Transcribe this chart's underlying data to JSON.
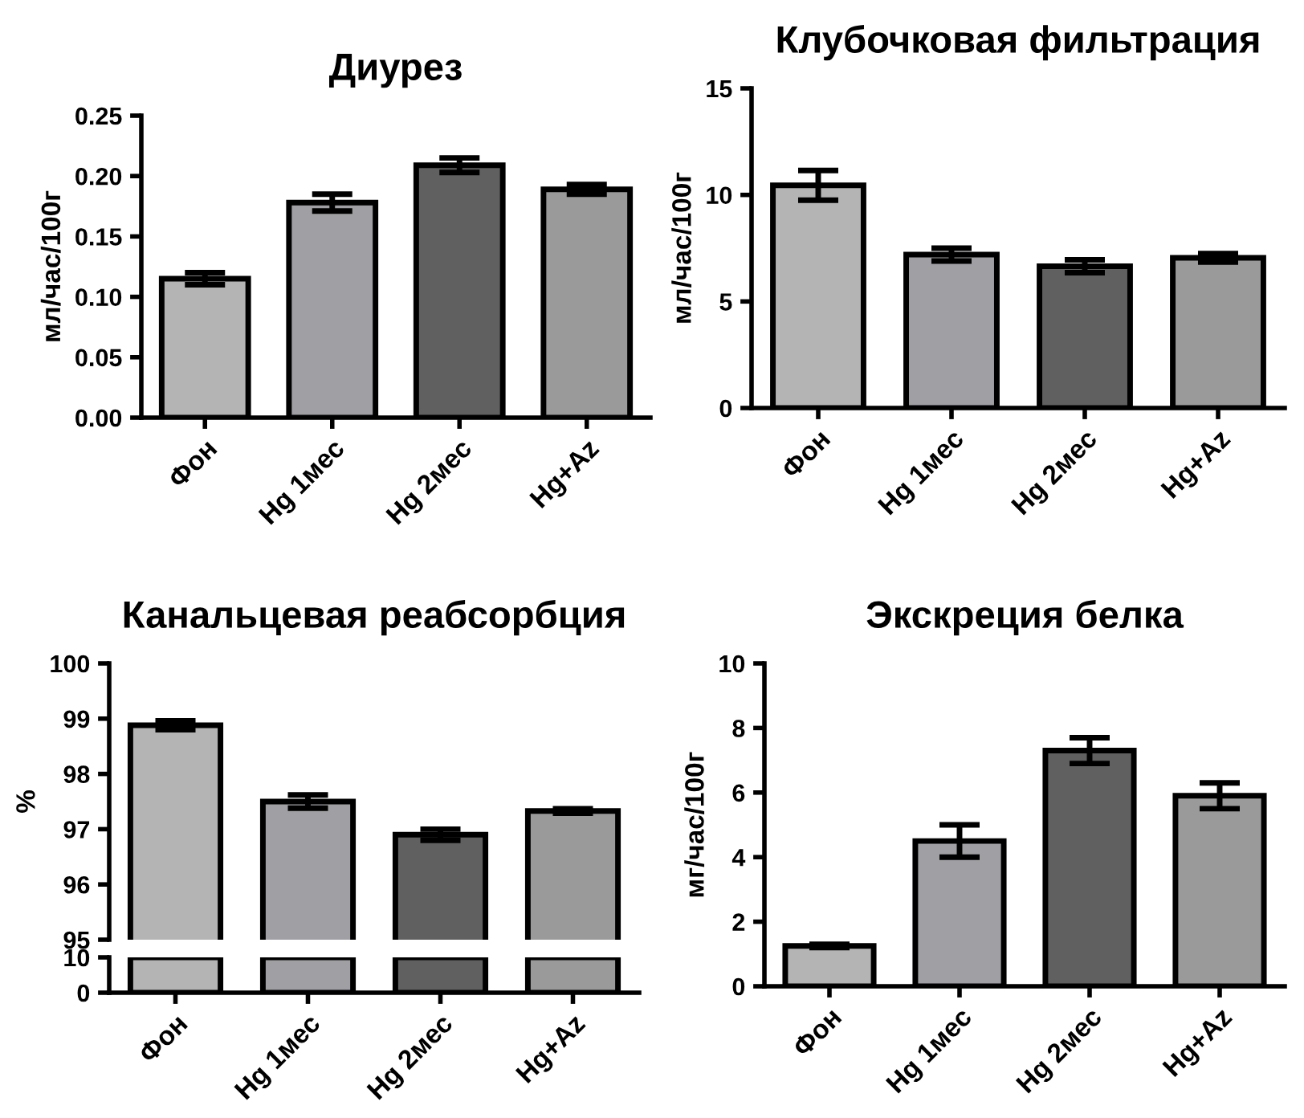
{
  "chart_data": [
    {
      "type": "bar",
      "title": "Диурез",
      "ylabel": "мл/час/100г",
      "categories": [
        "Фон",
        "Hg 1мес",
        "Hg 2мес",
        "Hg+Az"
      ],
      "values": [
        0.115,
        0.178,
        0.209,
        0.189
      ],
      "errors": [
        0.005,
        0.007,
        0.006,
        0.004
      ],
      "colors": [
        "#b4b4b4",
        "#a0a0a4",
        "#606060",
        "#9a9a9a"
      ],
      "ylim": [
        0,
        0.25
      ],
      "yticks": [
        {
          "value": 0,
          "label": "0.00"
        },
        0.05,
        {
          "value": 0.1,
          "label": "0.10"
        },
        0.15,
        {
          "value": 0.2,
          "label": "0.20"
        },
        0.25
      ]
    },
    {
      "type": "bar",
      "title": "Клубочковая фильтрация",
      "ylabel": "мл/час/100г",
      "categories": [
        "Фон",
        "Hg 1мес",
        "Hg 2мес",
        "Hg+Az"
      ],
      "values": [
        10.45,
        7.2,
        6.65,
        7.05
      ],
      "errors": [
        0.7,
        0.3,
        0.3,
        0.2
      ],
      "colors": [
        "#b4b4b4",
        "#a0a0a4",
        "#606060",
        "#9a9a9a"
      ],
      "ylim": [
        0,
        15
      ],
      "yticks": [
        0,
        5,
        10,
        15
      ]
    },
    {
      "type": "bar",
      "title": "Канальцевая реабсорбция",
      "ylabel": "%",
      "categories": [
        null,
        null,
        null,
        null
      ],
      "values": [
        98.88,
        97.5,
        96.9,
        97.33
      ],
      "errors": [
        0.08,
        0.12,
        0.1,
        0.04
      ],
      "colors": [
        "#b4b4b4",
        "#a0a0a4",
        "#606060",
        "#9a9a9a"
      ],
      "ylim": [
        95,
        100
      ],
      "yticks": [
        95,
        96,
        97,
        98,
        99,
        100
      ],
      "tick_labels": "y"
    },
    {
      "type": "bar",
      "categories": [
        "Фон",
        "Hg 1мес",
        "Hg 2мес",
        "Hg+Az"
      ],
      "values": [
        10,
        10,
        10,
        10
      ],
      "colors": [
        "#b4b4b4",
        "#a0a0a4",
        "#606060",
        "#9a9a9a"
      ],
      "ylim": [
        0,
        10
      ],
      "yticks": [
        0,
        10
      ]
    },
    {
      "type": "bar",
      "title": "Экскреция белка",
      "ylabel": "мг/час/100г",
      "categories": [
        "Фон",
        "Hg 1мес",
        "Hg 2мес",
        "Hg+Az"
      ],
      "values": [
        1.25,
        4.5,
        7.3,
        5.9
      ],
      "errors": [
        0.05,
        0.5,
        0.4,
        0.4
      ],
      "colors": [
        "#b4b4b4",
        "#a0a0a4",
        "#606060",
        "#9a9a9a"
      ],
      "ylim": [
        0,
        10
      ],
      "yticks": [
        0,
        2,
        4,
        6,
        8,
        10
      ]
    }
  ]
}
